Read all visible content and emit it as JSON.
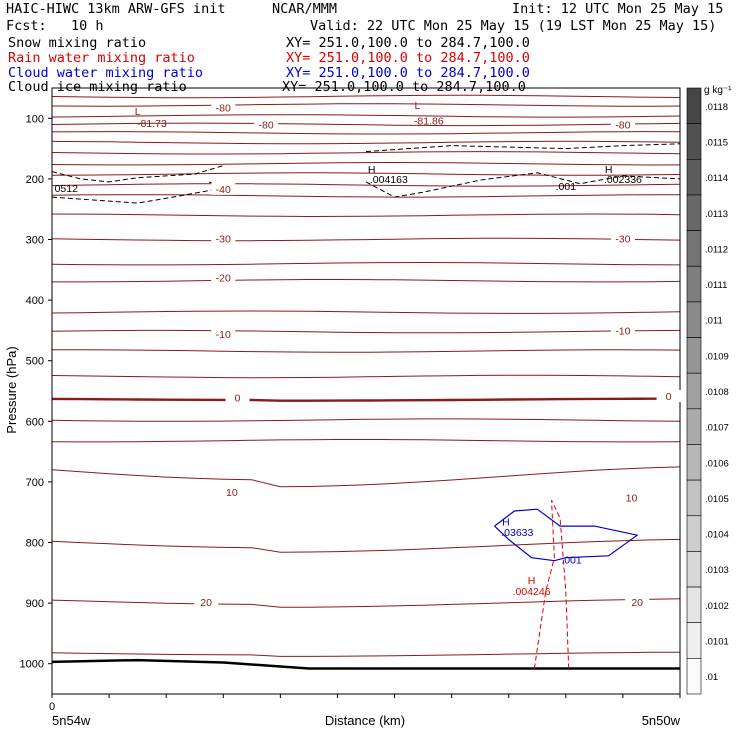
{
  "header": {
    "title": "HAIC-HIWC 13km ARW-GFS init",
    "org": "NCAR/MMM",
    "init": "Init: 12 UTC Mon 25 May 15",
    "fcst": "Fcst:   10 h",
    "valid": "Valid: 22 UTC Mon 25 May 15 (19 LST Mon 25 May 15)"
  },
  "fields": [
    {
      "name": "Snow mixing ratio",
      "xy": "XY= 251.0,100.0 to 284.7,100.0",
      "color": "#000000"
    },
    {
      "name": "Rain water mixing ratio",
      "xy": "XY= 251.0,100.0 to 284.7,100.0",
      "color": "#dd0000"
    },
    {
      "name": "Cloud water mixing ratio",
      "xy": "XY= 251.0,100.0 to 284.7,100.0",
      "color": "#0000cc"
    },
    {
      "name": "Cloud ice mixing ratio",
      "xy": "XY= 251.0,100.0 to 284.7,100.0",
      "color": "#000000"
    }
  ],
  "chart_data": {
    "type": "line",
    "xlabel": "Distance (km)",
    "ylabel": "Pressure (hPa)",
    "x_ticks_left": {
      "value": "0",
      "label": "5n54w"
    },
    "x_tick_right_label": "5n50w",
    "ylim": [
      1050,
      40
    ],
    "y_ticks": [
      100,
      200,
      300,
      400,
      500,
      600,
      700,
      800,
      900,
      1000
    ],
    "isotherm_labels": [
      {
        "x": 6,
        "p": 84,
        "text": "-80"
      },
      {
        "x": 7.5,
        "p": 112,
        "text": "-80"
      },
      {
        "x": 20,
        "p": 112,
        "text": "-80"
      },
      {
        "x": 6,
        "p": 218,
        "text": "-40"
      },
      {
        "x": 6,
        "p": 300,
        "text": "-30"
      },
      {
        "x": 20,
        "p": 300,
        "text": "-30"
      },
      {
        "x": 6,
        "p": 364,
        "text": "-20"
      },
      {
        "x": 6,
        "p": 458,
        "text": "-10"
      },
      {
        "x": 20,
        "p": 452,
        "text": "-10"
      },
      {
        "x": 6.5,
        "p": 562,
        "text": "0"
      },
      {
        "x": 21.6,
        "p": 560,
        "text": "0"
      },
      {
        "x": 6.3,
        "p": 718,
        "text": "10"
      },
      {
        "x": 20.3,
        "p": 727,
        "text": "10"
      },
      {
        "x": 5.4,
        "p": 900,
        "text": "20"
      },
      {
        "x": 20.5,
        "p": 900,
        "text": "20"
      }
    ],
    "extrema_labels": [
      {
        "x": 3,
        "p": 88,
        "text": "L",
        "color": "#8b1a1a"
      },
      {
        "x": 3.5,
        "p": 108,
        "text": "-81.73",
        "color": "#8b1a1a"
      },
      {
        "x": 12.8,
        "p": 78,
        "text": "L",
        "color": "#8b1a1a"
      },
      {
        "x": 13.2,
        "p": 104,
        "text": "-81.86",
        "color": "#8b1a1a"
      },
      {
        "x": 11.2,
        "p": 184,
        "text": "H",
        "color": "#000000"
      },
      {
        "x": 11.8,
        "p": 200,
        "text": ".004163",
        "color": "#000000"
      },
      {
        "x": 19.5,
        "p": 184,
        "text": "H",
        "color": "#000000"
      },
      {
        "x": 20,
        "p": 200,
        "text": ".002336",
        "color": "#000000"
      },
      {
        "x": 18,
        "p": 212,
        "text": ".001",
        "color": "#000000"
      },
      {
        "x": 0.5,
        "p": 215,
        "text": "0512",
        "color": "#000000"
      },
      {
        "x": 15.9,
        "p": 765,
        "text": "H",
        "color": "#0000cc"
      },
      {
        "x": 16.3,
        "p": 783,
        "text": ".03633",
        "color": "#0000cc"
      },
      {
        "x": 18.2,
        "p": 828,
        "text": ".001",
        "color": "#0000cc"
      },
      {
        "x": 16.8,
        "p": 862,
        "text": "H",
        "color": "#dd0000"
      },
      {
        "x": 16.8,
        "p": 880,
        "text": ".004246",
        "color": "#dd0000"
      }
    ],
    "colorbar": {
      "unit": "g kg⁻¹",
      "labels": [
        ".0118",
        ".0115",
        ".0114",
        ".0113",
        ".0112",
        ".0111",
        ".011",
        ".0109",
        ".0108",
        ".0107",
        ".0106",
        ".0105",
        ".0104",
        ".0103",
        ".0102",
        ".0101",
        ".01"
      ]
    },
    "colors": {
      "isotherm": "#8b1a1a",
      "frame": "#000000"
    }
  }
}
